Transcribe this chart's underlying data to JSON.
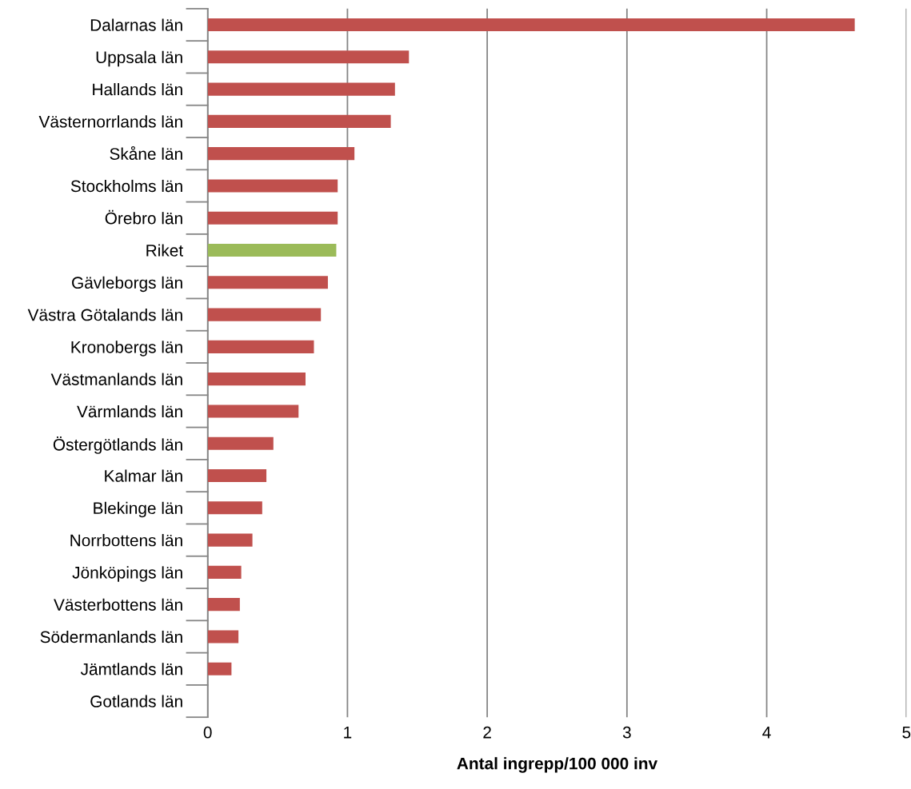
{
  "chart_data": {
    "type": "bar",
    "orientation": "horizontal",
    "categories": [
      "Dalarnas län",
      "Uppsala län",
      "Hallands län",
      "Västernorrlands län",
      "Skåne län",
      "Stockholms län",
      "Örebro län",
      "Riket",
      "Gävleborgs län",
      "Västra Götalands län",
      "Kronobergs län",
      "Västmanlands län",
      "Värmlands län",
      "Östergötlands län",
      "Kalmar län",
      "Blekinge län",
      "Norrbottens län",
      "Jönköpings län",
      "Västerbottens län",
      "Södermanlands län",
      "Jämtlands län",
      "Gotlands län"
    ],
    "values": [
      4.63,
      1.44,
      1.34,
      1.31,
      1.05,
      0.93,
      0.93,
      0.92,
      0.86,
      0.81,
      0.76,
      0.7,
      0.65,
      0.47,
      0.42,
      0.39,
      0.32,
      0.24,
      0.23,
      0.22,
      0.17,
      0
    ],
    "colors": [
      "#c0504d",
      "#c0504d",
      "#c0504d",
      "#c0504d",
      "#c0504d",
      "#c0504d",
      "#c0504d",
      "#9bbb59",
      "#c0504d",
      "#c0504d",
      "#c0504d",
      "#c0504d",
      "#c0504d",
      "#c0504d",
      "#c0504d",
      "#c0504d",
      "#c0504d",
      "#c0504d",
      "#c0504d",
      "#c0504d",
      "#c0504d",
      "#c0504d"
    ],
    "xlabel": "Antal ingrepp/100 000 inv",
    "xlim": [
      0,
      5
    ],
    "xticks": [
      0,
      1,
      2,
      3,
      4,
      5
    ],
    "grid": "x",
    "legend": false
  }
}
